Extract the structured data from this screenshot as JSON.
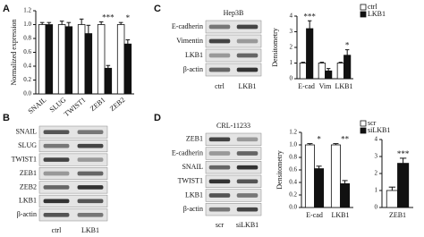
{
  "panels": [
    "A",
    "B",
    "C",
    "D"
  ],
  "chart_data": [
    {
      "type": "bar",
      "ylabel": "Normalized expression",
      "categories": [
        "SNAIL",
        "SLUG",
        "TWIST1",
        "ZEB1",
        "ZEB2"
      ],
      "series": [
        {
          "color": "#ffffff",
          "values": [
            1.0,
            1.0,
            1.0,
            1.0,
            1.0
          ],
          "errors": [
            0.03,
            0.05,
            0.08,
            0.04,
            0.03
          ]
        },
        {
          "color": "#111111",
          "values": [
            1.0,
            0.97,
            0.87,
            0.37,
            0.72
          ],
          "errors": [
            0.03,
            0.06,
            0.12,
            0.04,
            0.06
          ]
        }
      ],
      "annotations": [
        null,
        null,
        null,
        "***",
        "*"
      ],
      "ylim": [
        0,
        1.2
      ],
      "yticks": [
        {
          "value": 0,
          "label": "0.0"
        },
        0.2,
        0.4,
        0.6,
        0.8,
        {
          "value": 1,
          "label": "1.0"
        },
        1.2
      ]
    },
    {
      "type": "bar",
      "ylabel": "Densitometry",
      "categories": [
        "E-cad",
        "Vim",
        "LKB1"
      ],
      "series": [
        {
          "name": "ctrl",
          "color": "#ffffff",
          "values": [
            1.0,
            1.0,
            1.0
          ],
          "errors": [
            0.05,
            0.05,
            0.05
          ]
        },
        {
          "name": "LKB1",
          "color": "#111111",
          "values": [
            3.2,
            0.5,
            1.5
          ],
          "errors": [
            0.5,
            0.15,
            0.35
          ]
        }
      ],
      "annotations": [
        "***",
        null,
        "*"
      ],
      "ylim": [
        0,
        4
      ],
      "yticks": [
        0,
        1,
        2,
        3,
        4
      ]
    },
    {
      "type": "bar",
      "ylabel": "Densitometry",
      "categories": [
        "E-cad",
        "LKB1"
      ],
      "series": [
        {
          "name": "scr",
          "color": "#ffffff",
          "values": [
            1.0,
            1.0
          ],
          "errors": [
            0.02,
            0.02
          ]
        },
        {
          "name": "siLKB1",
          "color": "#111111",
          "values": [
            0.62,
            0.38
          ],
          "errors": [
            0.04,
            0.05
          ]
        }
      ],
      "annotations": [
        "*",
        "**"
      ],
      "ylim": [
        0,
        1.2
      ],
      "yticks": [
        {
          "value": 0,
          "label": "0.0"
        },
        0.2,
        0.4,
        0.6,
        0.8,
        {
          "value": 1,
          "label": "1.0"
        },
        1.2
      ]
    },
    {
      "type": "bar",
      "categories": [
        "ZEB1"
      ],
      "series": [
        {
          "color": "#ffffff",
          "values": [
            1.0
          ],
          "errors": [
            0.2
          ]
        },
        {
          "color": "#111111",
          "values": [
            2.6
          ],
          "errors": [
            0.3
          ]
        }
      ],
      "annotations": [
        "***"
      ],
      "ylim": [
        0,
        4
      ],
      "yticks": [
        0,
        1,
        2,
        3,
        4
      ]
    }
  ],
  "blots": [
    {
      "rows": [
        "SNAIL",
        "SLUG",
        "TWIST1",
        "ZEB1",
        "ZEB2",
        "LKB1",
        "β-actin"
      ],
      "lanes": [
        "ctrl",
        "LKB1"
      ]
    },
    {
      "title": "Hep3B",
      "rows": [
        "E-cadherin",
        "Vimentin",
        "LKB1",
        "β-actin"
      ],
      "lanes": [
        "ctrl",
        "LKB1"
      ]
    },
    {
      "title": "CRL-11233",
      "rows": [
        "ZEB1",
        "E-cadherin",
        "SNAIL",
        "TWIST1",
        "LKB1",
        "β-actin"
      ],
      "lanes": [
        "scr",
        "siLKB1"
      ]
    }
  ]
}
